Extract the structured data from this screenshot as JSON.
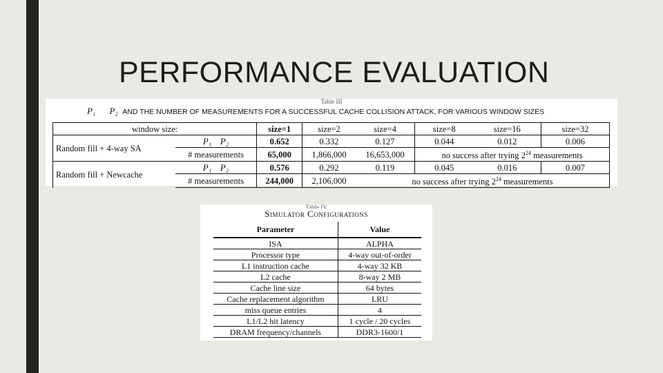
{
  "slide": {
    "title": "PERFORMANCE EVALUATION"
  },
  "table1": {
    "label": "Table III",
    "caption": {
      "p1": "P₁",
      "p2": "P₂",
      "text": "AND THE NUMBER OF MEASUREMENTS FOR A SUCCESSFUL CACHE COLLISION ATTACK, FOR VARIOUS WINDOW SIZES"
    },
    "header": {
      "label": "window size:",
      "cols": [
        "size=1",
        "size=2",
        "size=4",
        "size=8",
        "size=16",
        "size=32"
      ]
    },
    "groups": [
      {
        "name": "Random fill + 4-way SA",
        "p_label_1": "P₁",
        "p_label_2": "P₂",
        "p_values": [
          "0.652",
          "0.332",
          "0.127",
          "0.044",
          "0.012",
          "0.006"
        ],
        "meas_label": "# measurements",
        "meas_values": [
          "65,000",
          "1,866,000",
          "16,653,000"
        ],
        "meas_tail": "no success after trying",
        "meas_exp": "24",
        "meas_unit": "measurements"
      },
      {
        "name": "Random fill + Newcache",
        "p_label_1": "P₁",
        "p_label_2": "P₂",
        "p_values": [
          "0.576",
          "0.292",
          "0.119",
          "0.045",
          "0.016",
          "0.007"
        ],
        "meas_label": "# measurements",
        "meas_values": [
          "244,000",
          "2,106,000"
        ],
        "meas_tail": "no success after trying",
        "meas_exp": "24",
        "meas_unit": "measurements"
      }
    ]
  },
  "table2": {
    "label": "Table IV",
    "caption": "Simulator Configurations",
    "headers": [
      "Parameter",
      "Value"
    ],
    "rows": [
      [
        "ISA",
        "ALPHA"
      ],
      [
        "Processor type",
        "4-way out-of-order"
      ],
      [
        "L1 instruction cache",
        "4-way 32 KB"
      ],
      [
        "L2 cache",
        "8-way 2 MB"
      ],
      [
        "Cache line size",
        "64 bytes"
      ],
      [
        "Cache replacement algorithm",
        "LRU"
      ],
      [
        "miss queue entries",
        "4"
      ],
      [
        "L1/L2 hit latency",
        "1 cycle / 20 cycles"
      ],
      [
        "DRAM frequency/channels",
        "DDR3-1600/1"
      ]
    ]
  }
}
